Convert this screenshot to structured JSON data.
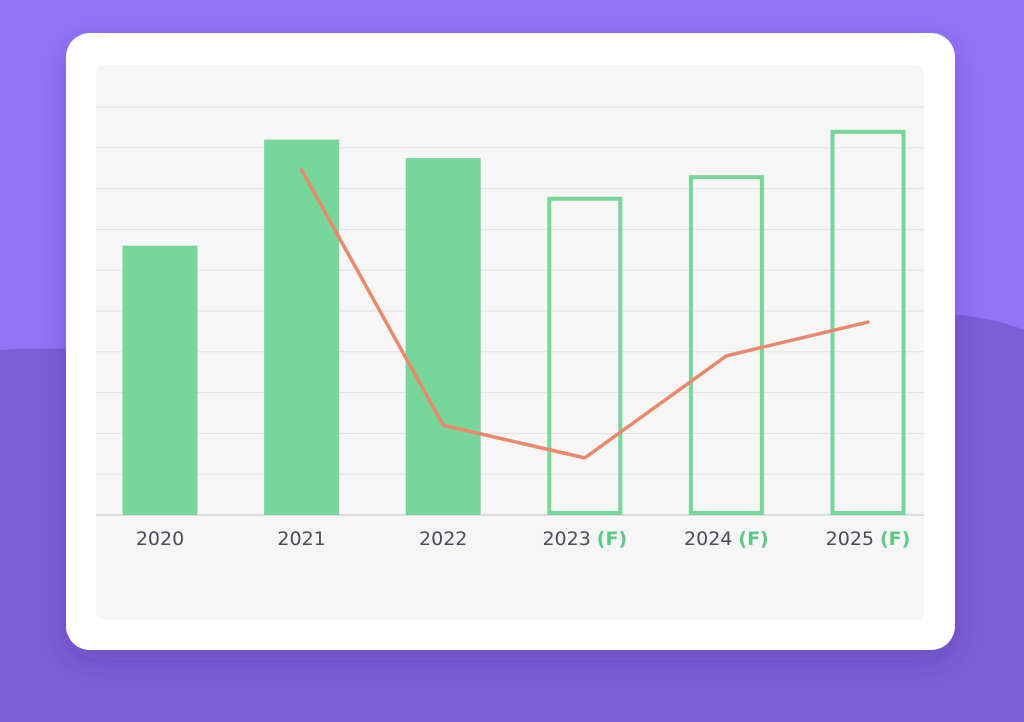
{
  "chart_data": {
    "type": "bar",
    "categories": [
      "2020",
      "2021",
      "2022",
      "2023",
      "2024",
      "2025"
    ],
    "forecast": [
      false,
      false,
      false,
      true,
      true,
      true
    ],
    "forecast_marker": "(F)",
    "ylim": [
      0,
      10
    ],
    "yticks": [
      0,
      1,
      2,
      3,
      4,
      5,
      6,
      7,
      8,
      9,
      10
    ],
    "grid": true,
    "series": [
      {
        "type": "bar",
        "color": "#77d69a",
        "values": [
          6.6,
          9.2,
          8.75,
          7.8,
          8.33,
          9.44
        ]
      },
      {
        "type": "line",
        "color": "#e8896b",
        "values": [
          null,
          8.46,
          2.2,
          1.4,
          3.9,
          4.73
        ]
      }
    ]
  }
}
